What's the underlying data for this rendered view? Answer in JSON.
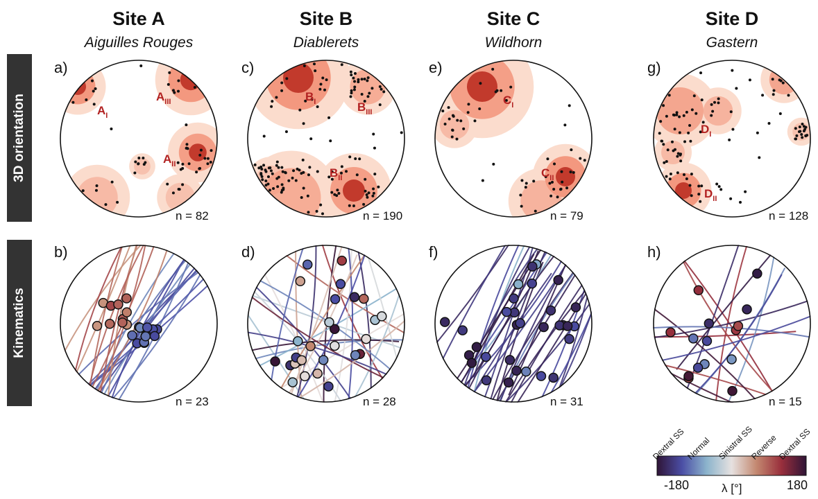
{
  "sites": [
    {
      "title": "Site A",
      "subtitle": "Aiguilles Rouges",
      "orientation": {
        "panel": "a)",
        "n": "n = 82",
        "labels": [
          {
            "base": "A",
            "sub": "I"
          },
          {
            "base": "A",
            "sub": "III"
          },
          {
            "base": "A",
            "sub": "II"
          }
        ]
      },
      "kinematics": {
        "panel": "b)",
        "n": "n = 23"
      }
    },
    {
      "title": "Site B",
      "subtitle": "Diablerets",
      "orientation": {
        "panel": "c)",
        "n": "n = 190",
        "labels": [
          {
            "base": "B",
            "sub": "I"
          },
          {
            "base": "B",
            "sub": "III"
          },
          {
            "base": "B",
            "sub": "II"
          }
        ]
      },
      "kinematics": {
        "panel": "d)",
        "n": "n = 28"
      }
    },
    {
      "title": "Site C",
      "subtitle": "Wildhorn",
      "orientation": {
        "panel": "e)",
        "n": "n = 79",
        "labels": [
          {
            "base": "C",
            "sub": "I"
          },
          {
            "base": "C",
            "sub": "II"
          }
        ]
      },
      "kinematics": {
        "panel": "f)",
        "n": "n = 31"
      }
    },
    {
      "title": "Site D",
      "subtitle": "Gastern",
      "orientation": {
        "panel": "g)",
        "n": "n = 128",
        "labels": [
          {
            "base": "D",
            "sub": "I"
          },
          {
            "base": "D",
            "sub": "II"
          }
        ]
      },
      "kinematics": {
        "panel": "h)",
        "n": "n = 15"
      }
    }
  ],
  "row_labels": {
    "orientation": "3D orientation",
    "kinematics": "Kinematics"
  },
  "colorbar": {
    "categories": [
      "Dextral SS",
      "Normal",
      "Sinistral SS",
      "Reverse",
      "Dextral SS"
    ],
    "min": "-180",
    "max": "180",
    "label": "λ [°]",
    "colormap": "twilight_shifted",
    "colors": [
      "#2f1436",
      "#4b4ea5",
      "#8cb4cc",
      "#e6e1e0",
      "#c38870",
      "#992f3c",
      "#2f1436"
    ]
  },
  "colors": {
    "density_low": "#fbdccd",
    "density_mid": "#f3987f",
    "density_high": "#c23a2c",
    "point": "#111111",
    "label_red": "#b22222",
    "row_label_bg": "#333333"
  }
}
